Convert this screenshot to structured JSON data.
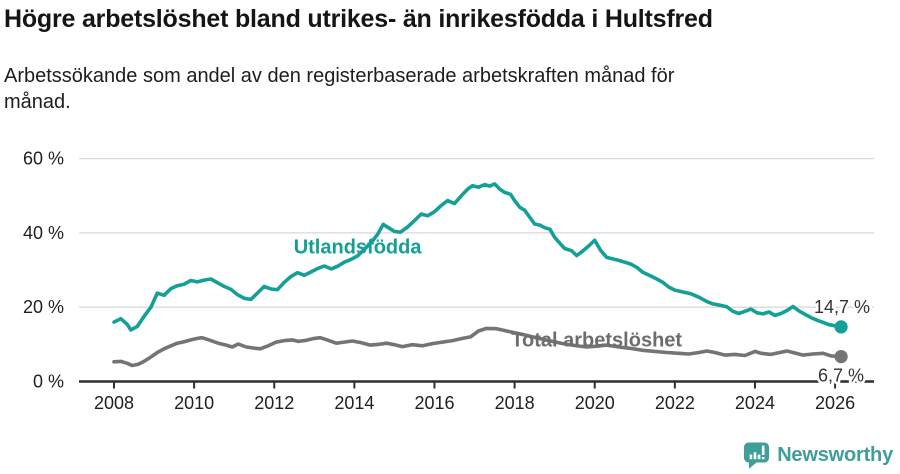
{
  "header": {
    "title": "Högre arbetslöshet bland utrikes- än inrikesfödda i Hultsfred",
    "subtitle": "Arbetssökande som andel av den registerbaserade arbetskraften månad för månad."
  },
  "chart_data": {
    "type": "line",
    "title": "Högre arbetslöshet bland utrikes- än inrikesfödda i Hultsfred",
    "subtitle": "Arbetssökande som andel av den registerbaserade arbetskraften månad för månad.",
    "xlabel": "",
    "ylabel": "",
    "y_unit": "%",
    "x_unit": "år (månadsdata)",
    "ylim": [
      0,
      60
    ],
    "xlim": [
      2008,
      2026.2
    ],
    "grid": "horizontal",
    "legend_position": "inline",
    "yticks": [
      {
        "v": 0,
        "label": "0 %"
      },
      {
        "v": 20,
        "label": "20 %"
      },
      {
        "v": 40,
        "label": "40 %"
      },
      {
        "v": 60,
        "label": "60 %"
      }
    ],
    "xticks": [
      {
        "v": 2008,
        "label": "2008"
      },
      {
        "v": 2010,
        "label": "2010"
      },
      {
        "v": 2012,
        "label": "2012"
      },
      {
        "v": 2014,
        "label": "2014"
      },
      {
        "v": 2016,
        "label": "2016"
      },
      {
        "v": 2018,
        "label": "2018"
      },
      {
        "v": 2020,
        "label": "2020"
      },
      {
        "v": 2022,
        "label": "2022"
      },
      {
        "v": 2024,
        "label": "2024"
      },
      {
        "v": 2026,
        "label": "2026"
      }
    ],
    "series": [
      {
        "name": "Utlandsfödda",
        "color": "#14a096",
        "label_color": "#14a096",
        "end_label": "14,7 %",
        "last_value": 14.7,
        "label_anchor": {
          "x": 2014.08,
          "y": 36.3
        },
        "points": [
          [
            2008.0,
            16.0
          ],
          [
            2008.17,
            16.9
          ],
          [
            2008.33,
            15.4
          ],
          [
            2008.42,
            13.9
          ],
          [
            2008.58,
            14.8
          ],
          [
            2008.75,
            17.5
          ],
          [
            2008.92,
            20.0
          ],
          [
            2009.08,
            23.8
          ],
          [
            2009.25,
            23.2
          ],
          [
            2009.42,
            25.0
          ],
          [
            2009.58,
            25.8
          ],
          [
            2009.75,
            26.2
          ],
          [
            2009.92,
            27.2
          ],
          [
            2010.08,
            26.8
          ],
          [
            2010.25,
            27.3
          ],
          [
            2010.42,
            27.6
          ],
          [
            2010.58,
            26.6
          ],
          [
            2010.75,
            25.6
          ],
          [
            2010.92,
            24.8
          ],
          [
            2011.08,
            23.4
          ],
          [
            2011.25,
            22.4
          ],
          [
            2011.42,
            22.1
          ],
          [
            2011.58,
            23.8
          ],
          [
            2011.75,
            25.6
          ],
          [
            2011.92,
            24.9
          ],
          [
            2012.08,
            24.7
          ],
          [
            2012.25,
            26.7
          ],
          [
            2012.42,
            28.3
          ],
          [
            2012.58,
            29.3
          ],
          [
            2012.75,
            28.6
          ],
          [
            2012.92,
            29.5
          ],
          [
            2013.08,
            30.4
          ],
          [
            2013.25,
            31.1
          ],
          [
            2013.42,
            30.3
          ],
          [
            2013.58,
            31.0
          ],
          [
            2013.75,
            32.1
          ],
          [
            2013.92,
            32.9
          ],
          [
            2014.08,
            33.8
          ],
          [
            2014.25,
            35.6
          ],
          [
            2014.42,
            37.4
          ],
          [
            2014.58,
            39.6
          ],
          [
            2014.72,
            42.3
          ],
          [
            2014.85,
            41.4
          ],
          [
            2015.0,
            40.4
          ],
          [
            2015.15,
            40.2
          ],
          [
            2015.33,
            41.6
          ],
          [
            2015.5,
            43.3
          ],
          [
            2015.67,
            45.1
          ],
          [
            2015.83,
            44.6
          ],
          [
            2016.0,
            45.7
          ],
          [
            2016.17,
            47.4
          ],
          [
            2016.33,
            48.7
          ],
          [
            2016.5,
            47.9
          ],
          [
            2016.67,
            50.0
          ],
          [
            2016.83,
            51.8
          ],
          [
            2016.95,
            52.7
          ],
          [
            2017.1,
            52.3
          ],
          [
            2017.25,
            53.0
          ],
          [
            2017.38,
            52.6
          ],
          [
            2017.5,
            53.2
          ],
          [
            2017.63,
            51.8
          ],
          [
            2017.75,
            50.9
          ],
          [
            2017.9,
            50.4
          ],
          [
            2018.0,
            48.7
          ],
          [
            2018.13,
            46.9
          ],
          [
            2018.25,
            46.1
          ],
          [
            2018.38,
            44.2
          ],
          [
            2018.5,
            42.4
          ],
          [
            2018.63,
            42.1
          ],
          [
            2018.75,
            41.4
          ],
          [
            2018.88,
            41.0
          ],
          [
            2019.0,
            38.8
          ],
          [
            2019.13,
            37.2
          ],
          [
            2019.25,
            35.8
          ],
          [
            2019.42,
            35.2
          ],
          [
            2019.55,
            33.9
          ],
          [
            2019.7,
            35.1
          ],
          [
            2019.85,
            36.5
          ],
          [
            2020.0,
            38.0
          ],
          [
            2020.15,
            35.3
          ],
          [
            2020.3,
            33.4
          ],
          [
            2020.45,
            33.0
          ],
          [
            2020.6,
            32.6
          ],
          [
            2020.75,
            32.1
          ],
          [
            2020.9,
            31.6
          ],
          [
            2021.05,
            30.7
          ],
          [
            2021.2,
            29.4
          ],
          [
            2021.38,
            28.5
          ],
          [
            2021.55,
            27.6
          ],
          [
            2021.7,
            26.7
          ],
          [
            2021.85,
            25.4
          ],
          [
            2022.0,
            24.6
          ],
          [
            2022.2,
            24.1
          ],
          [
            2022.4,
            23.6
          ],
          [
            2022.6,
            22.7
          ],
          [
            2022.8,
            21.5
          ],
          [
            2022.95,
            20.9
          ],
          [
            2023.1,
            20.6
          ],
          [
            2023.3,
            20.1
          ],
          [
            2023.45,
            18.9
          ],
          [
            2023.6,
            18.3
          ],
          [
            2023.75,
            18.9
          ],
          [
            2023.9,
            19.5
          ],
          [
            2024.05,
            18.5
          ],
          [
            2024.2,
            18.2
          ],
          [
            2024.35,
            18.7
          ],
          [
            2024.5,
            17.8
          ],
          [
            2024.65,
            18.3
          ],
          [
            2024.8,
            19.1
          ],
          [
            2024.95,
            20.2
          ],
          [
            2025.1,
            19.0
          ],
          [
            2025.25,
            18.1
          ],
          [
            2025.4,
            17.2
          ],
          [
            2025.55,
            16.5
          ],
          [
            2025.7,
            15.9
          ],
          [
            2025.85,
            15.3
          ],
          [
            2026.0,
            15.0
          ],
          [
            2026.15,
            14.7
          ]
        ]
      },
      {
        "name": "Total arbetslöshet",
        "color": "#747474",
        "label_color": "#6d6d6d",
        "end_label": "6,7 %",
        "last_value": 6.7,
        "label_anchor": {
          "x": 2020.05,
          "y": 11.3
        },
        "points": [
          [
            2008.0,
            5.3
          ],
          [
            2008.17,
            5.4
          ],
          [
            2008.33,
            4.9
          ],
          [
            2008.45,
            4.3
          ],
          [
            2008.6,
            4.6
          ],
          [
            2008.75,
            5.4
          ],
          [
            2008.92,
            6.6
          ],
          [
            2009.08,
            7.8
          ],
          [
            2009.25,
            8.8
          ],
          [
            2009.42,
            9.6
          ],
          [
            2009.58,
            10.3
          ],
          [
            2009.75,
            10.7
          ],
          [
            2009.92,
            11.2
          ],
          [
            2010.08,
            11.6
          ],
          [
            2010.2,
            11.8
          ],
          [
            2010.4,
            11.1
          ],
          [
            2010.6,
            10.3
          ],
          [
            2010.8,
            9.8
          ],
          [
            2010.95,
            9.3
          ],
          [
            2011.1,
            10.1
          ],
          [
            2011.3,
            9.3
          ],
          [
            2011.5,
            9.0
          ],
          [
            2011.65,
            8.8
          ],
          [
            2011.85,
            9.6
          ],
          [
            2012.05,
            10.6
          ],
          [
            2012.25,
            11.0
          ],
          [
            2012.45,
            11.2
          ],
          [
            2012.6,
            10.8
          ],
          [
            2012.8,
            11.1
          ],
          [
            2013.0,
            11.6
          ],
          [
            2013.15,
            11.8
          ],
          [
            2013.35,
            11.1
          ],
          [
            2013.55,
            10.3
          ],
          [
            2013.75,
            10.6
          ],
          [
            2013.95,
            10.9
          ],
          [
            2014.15,
            10.5
          ],
          [
            2014.4,
            9.8
          ],
          [
            2014.6,
            10.0
          ],
          [
            2014.8,
            10.3
          ],
          [
            2015.0,
            9.9
          ],
          [
            2015.2,
            9.4
          ],
          [
            2015.45,
            9.9
          ],
          [
            2015.7,
            9.6
          ],
          [
            2015.95,
            10.2
          ],
          [
            2016.2,
            10.6
          ],
          [
            2016.45,
            11.0
          ],
          [
            2016.7,
            11.6
          ],
          [
            2016.9,
            12.0
          ],
          [
            2017.1,
            13.6
          ],
          [
            2017.3,
            14.3
          ],
          [
            2017.55,
            14.2
          ],
          [
            2017.8,
            13.6
          ],
          [
            2018.0,
            13.1
          ],
          [
            2018.3,
            12.4
          ],
          [
            2018.6,
            11.6
          ],
          [
            2018.9,
            10.9
          ],
          [
            2019.2,
            10.2
          ],
          [
            2019.5,
            9.7
          ],
          [
            2019.8,
            9.3
          ],
          [
            2020.05,
            9.5
          ],
          [
            2020.3,
            9.8
          ],
          [
            2020.6,
            9.3
          ],
          [
            2020.9,
            8.9
          ],
          [
            2021.2,
            8.4
          ],
          [
            2021.5,
            8.1
          ],
          [
            2021.8,
            7.8
          ],
          [
            2022.1,
            7.6
          ],
          [
            2022.35,
            7.4
          ],
          [
            2022.6,
            7.8
          ],
          [
            2022.8,
            8.2
          ],
          [
            2023.0,
            7.8
          ],
          [
            2023.25,
            7.1
          ],
          [
            2023.5,
            7.3
          ],
          [
            2023.75,
            7.0
          ],
          [
            2024.0,
            8.1
          ],
          [
            2024.15,
            7.6
          ],
          [
            2024.4,
            7.3
          ],
          [
            2024.65,
            7.9
          ],
          [
            2024.8,
            8.2
          ],
          [
            2024.95,
            7.8
          ],
          [
            2025.2,
            7.1
          ],
          [
            2025.45,
            7.4
          ],
          [
            2025.7,
            7.6
          ],
          [
            2025.9,
            6.9
          ],
          [
            2026.15,
            6.7
          ]
        ]
      }
    ],
    "colors": {
      "grid": "#d9d9d9",
      "axis": "#2d2d2d",
      "tick_label": "#1f1f1f",
      "value_label": "#333333",
      "brand_teal": "#3f9e9a"
    }
  },
  "footer": {
    "brand": "Newsworthy"
  }
}
